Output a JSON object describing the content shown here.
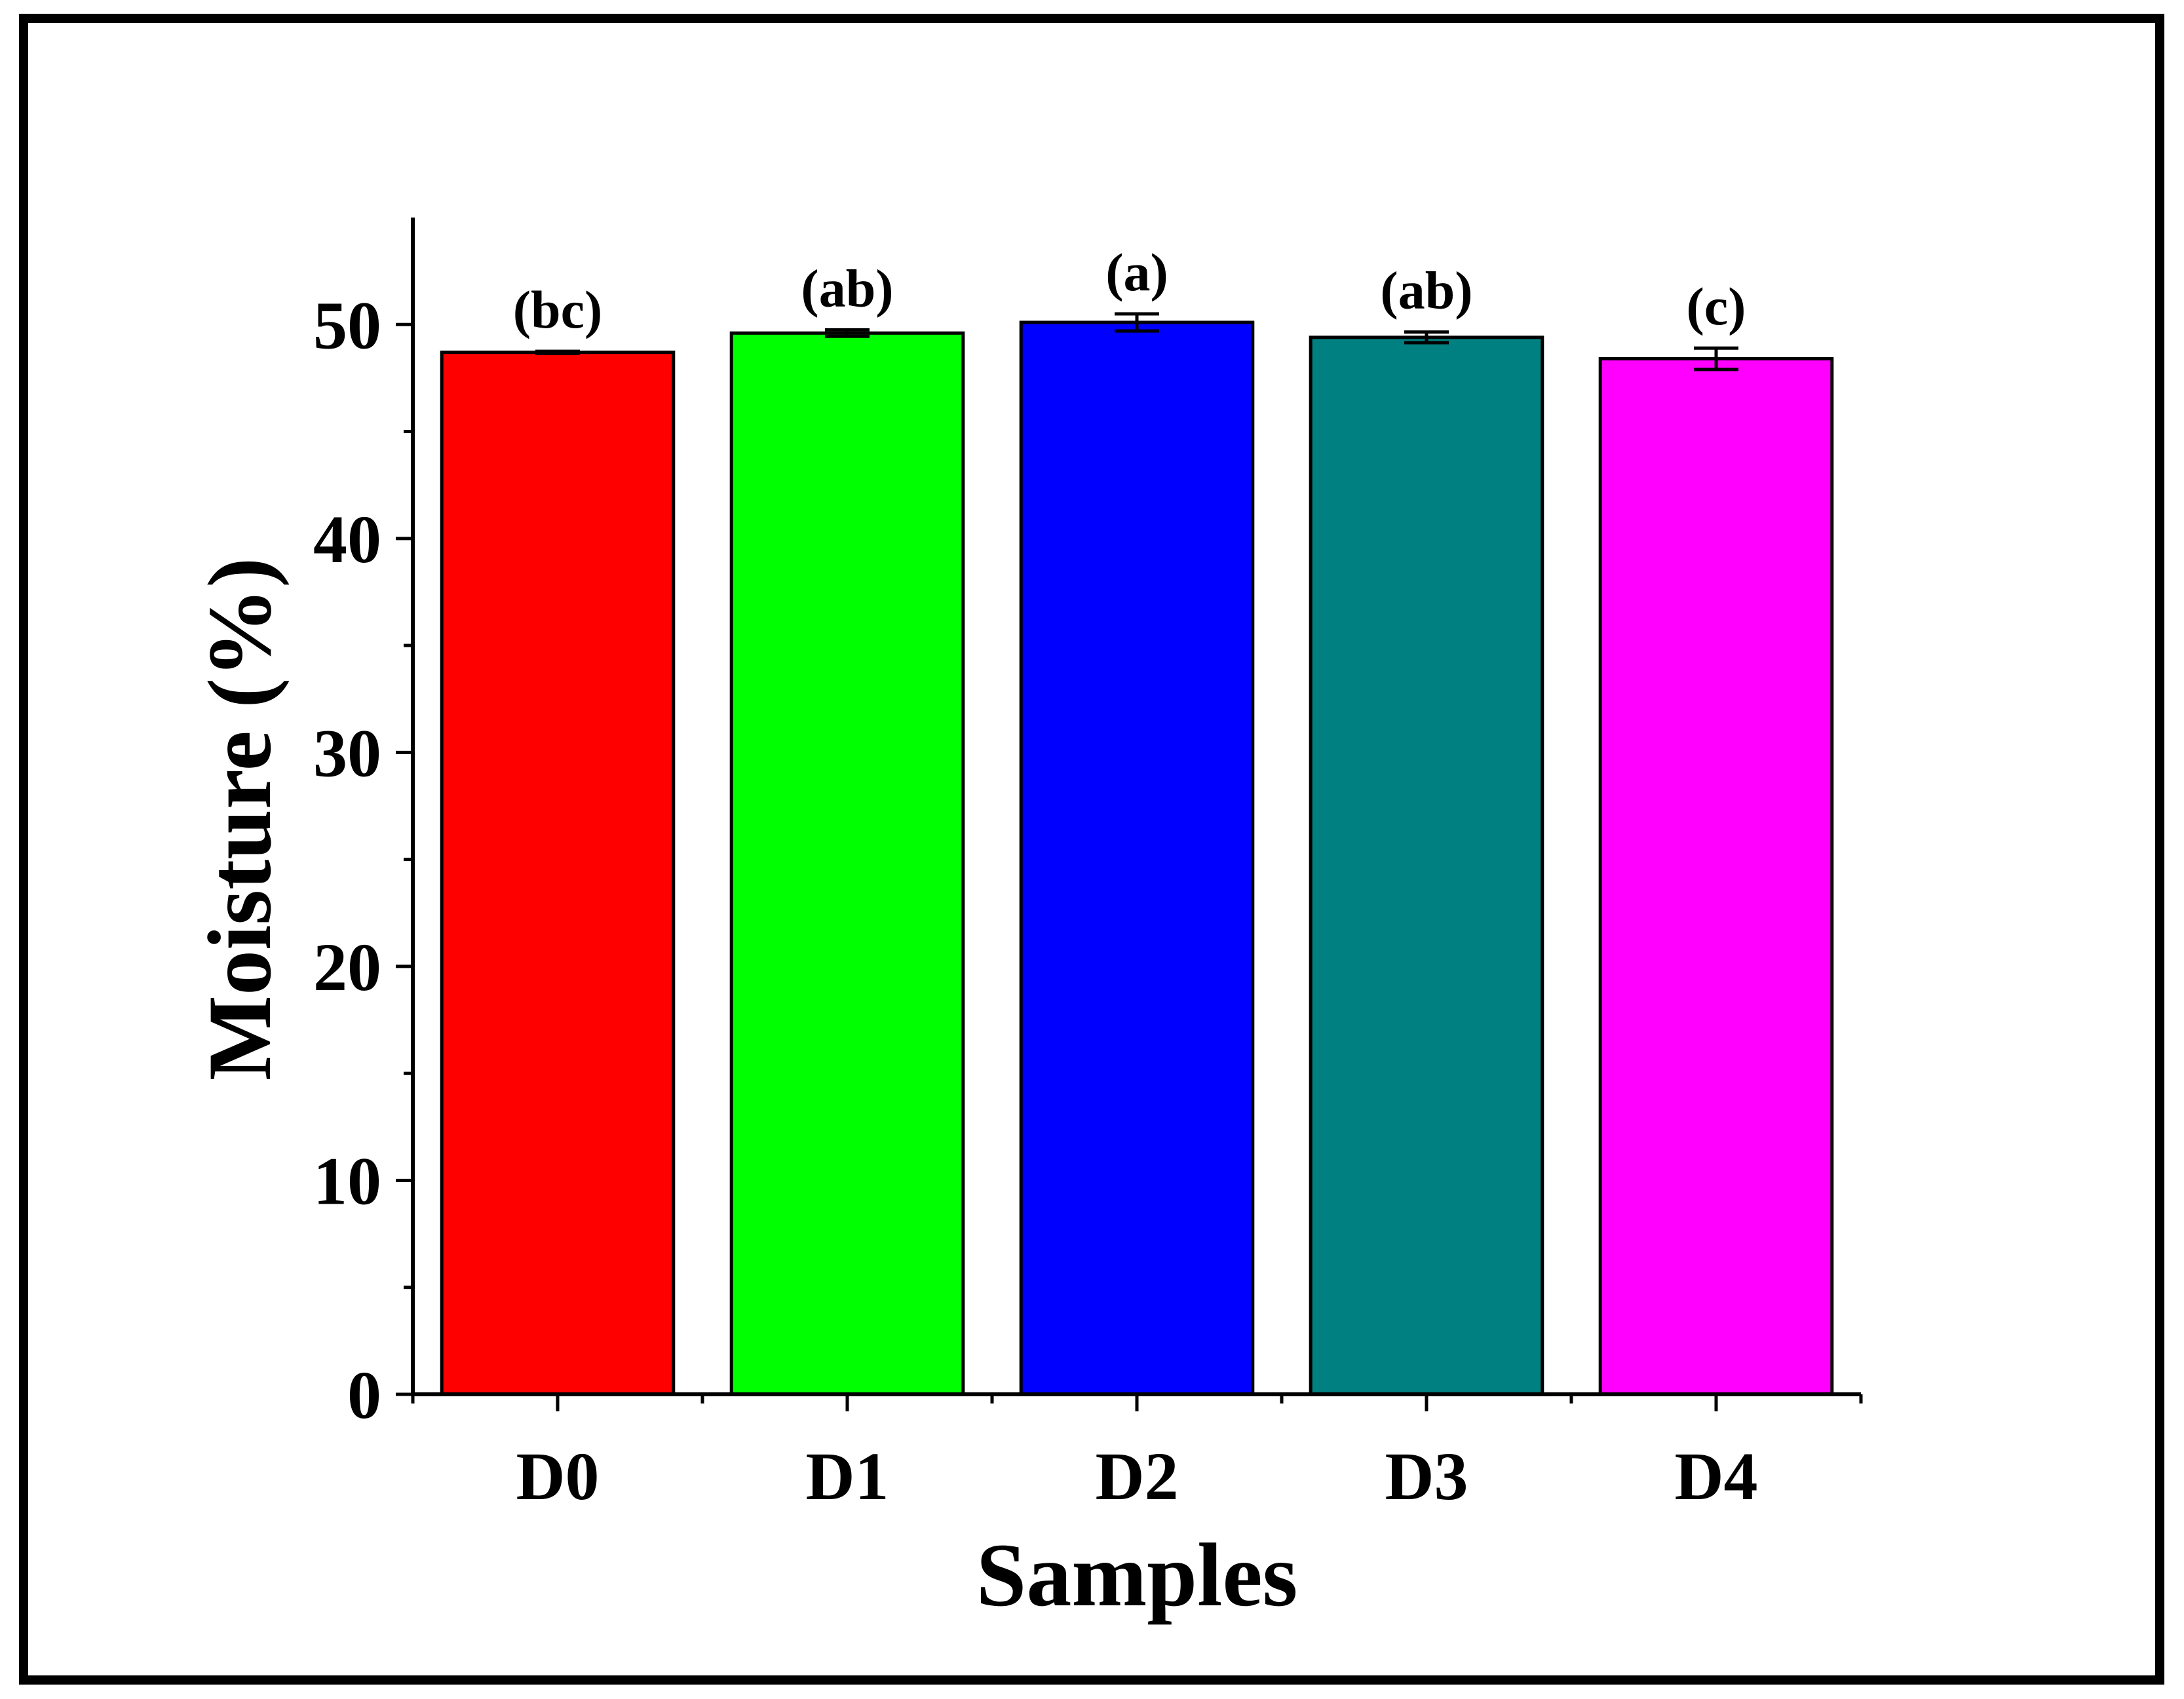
{
  "chart_data": {
    "type": "bar",
    "title": "",
    "xlabel": "Samples",
    "ylabel": "Moisture (%)",
    "ylim": [
      0,
      55
    ],
    "yticks": [
      0,
      10,
      20,
      30,
      40,
      50
    ],
    "categories": [
      "D0",
      "D1",
      "D2",
      "D3",
      "D4"
    ],
    "values": [
      48.7,
      49.6,
      50.1,
      49.4,
      48.4
    ],
    "errors": [
      0.05,
      0.15,
      0.4,
      0.25,
      0.5
    ],
    "significance_labels": [
      "(bc)",
      "(ab)",
      "(a)",
      "(ab)",
      "(c)"
    ],
    "colors": [
      "#ff0000",
      "#00ff00",
      "#0000ff",
      "#008080",
      "#ff00ff"
    ],
    "grid": false,
    "legend": "none"
  }
}
